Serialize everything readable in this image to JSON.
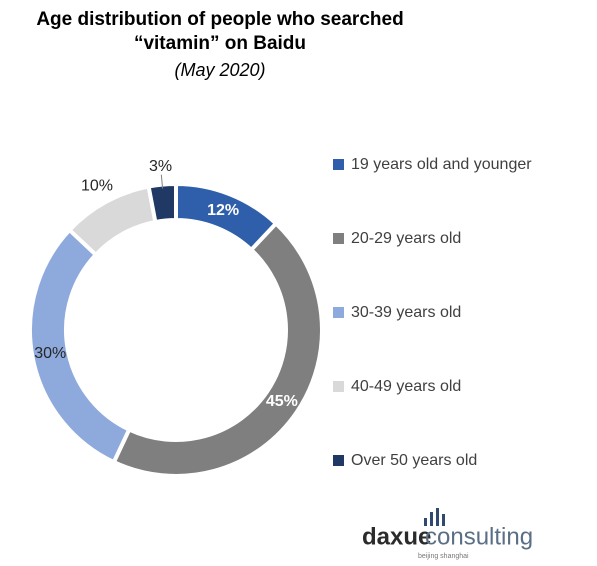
{
  "chart_data": {
    "type": "donut",
    "title": "Age distribution of people who searched “vitamin” on Baidu",
    "subtitle": "(May 2020)",
    "categories": [
      "19 years old and younger",
      "20-29 years old",
      "30-39 years old",
      "40-49 years old",
      "Over 50 years old"
    ],
    "values": [
      12,
      45,
      30,
      10,
      3
    ],
    "value_labels": [
      "12%",
      "45%",
      "30%",
      "10%",
      "3%"
    ],
    "colors": [
      "#2f5faa",
      "#7f7f7f",
      "#8eaadc",
      "#d9d9d9",
      "#1f3864"
    ],
    "legend": "right"
  },
  "logo": {
    "part1": "daxue",
    "part2": "consulting",
    "tagline": "beijing shanghai"
  }
}
